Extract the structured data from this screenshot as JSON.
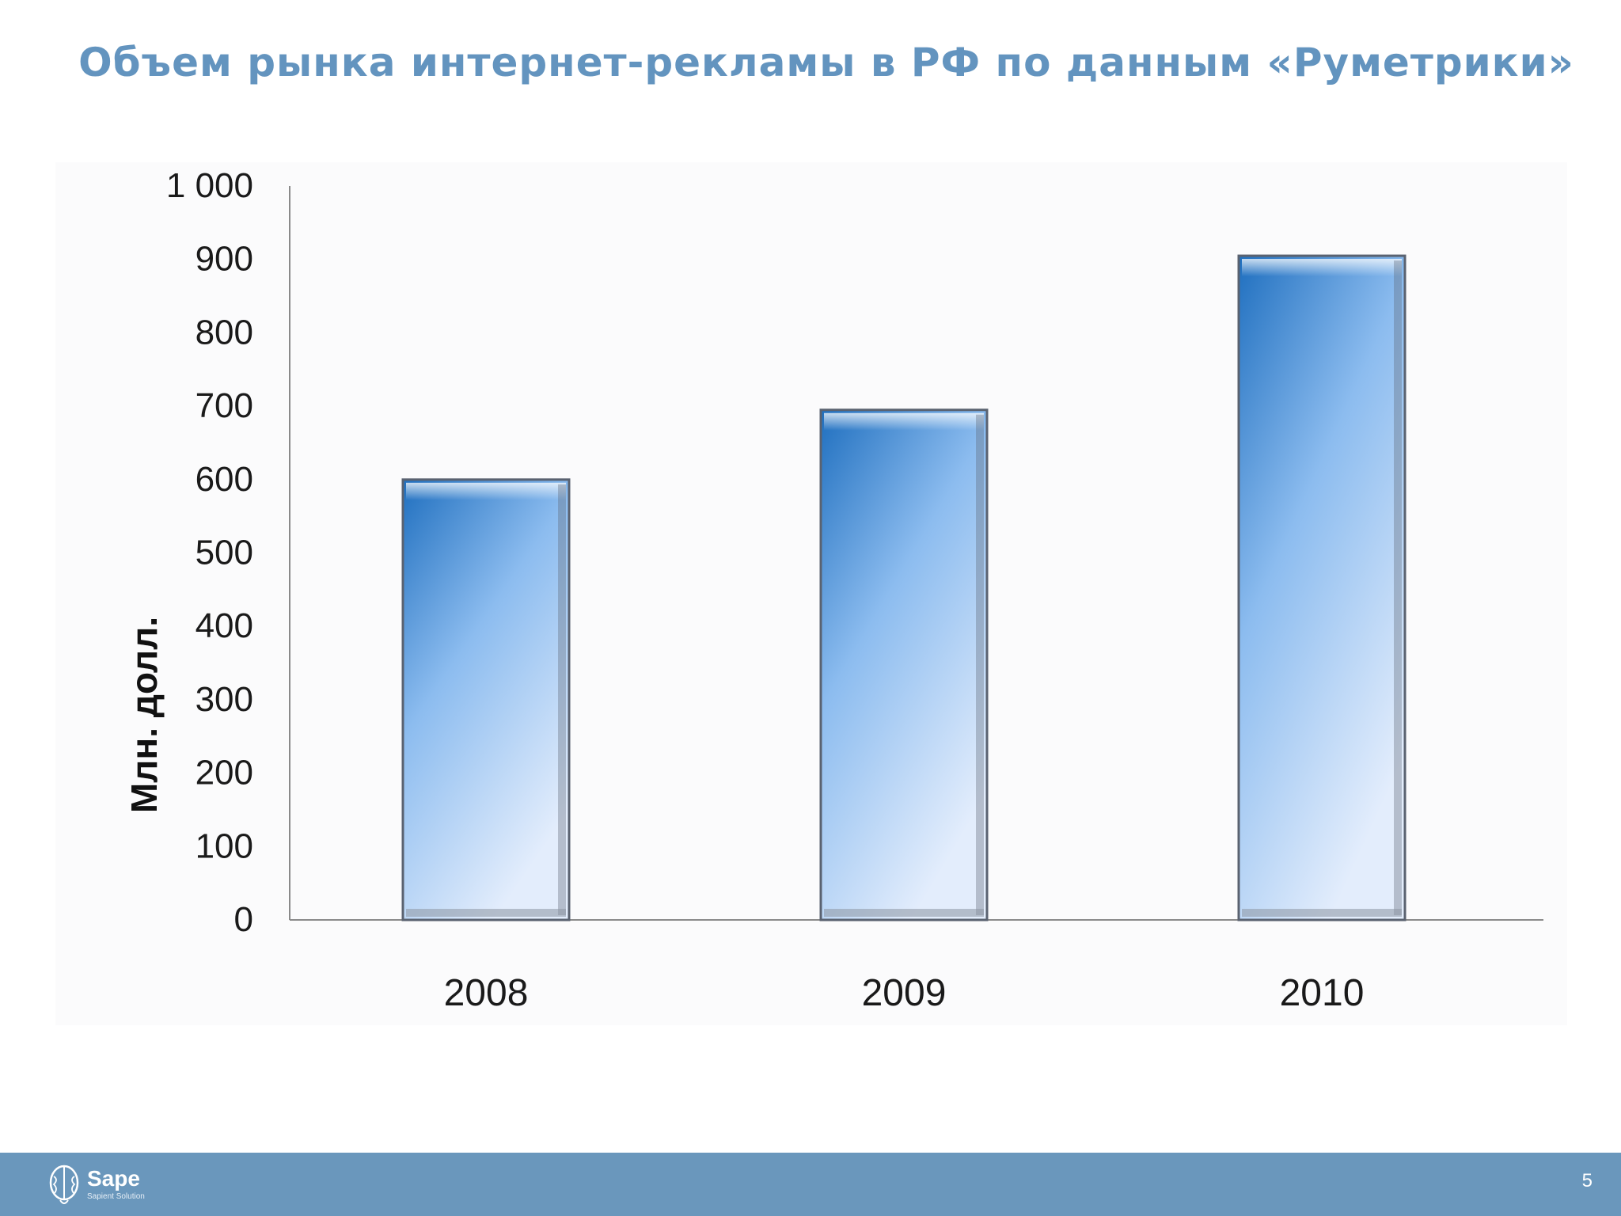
{
  "slide": {
    "title": "Объем рынка интернет-рекламы в РФ по данным «Руметрики»",
    "page_number": "5"
  },
  "footer": {
    "brand_name": "Sape",
    "brand_tagline": "Sapient Solution",
    "logo_icon": "brain-icon"
  },
  "chart_data": {
    "type": "bar",
    "categories": [
      "2008",
      "2009",
      "2010"
    ],
    "values": [
      600,
      695,
      905
    ],
    "ylabel": "Млн. долл.",
    "xlabel": "",
    "ylim": [
      0,
      1000
    ],
    "yticks": [
      0,
      100,
      200,
      300,
      400,
      500,
      600,
      700,
      800,
      900,
      1000
    ],
    "ytick_labels": [
      "0",
      "100",
      "200",
      "300",
      "400",
      "500",
      "600",
      "700",
      "800",
      "900",
      "1 000"
    ],
    "grid": false,
    "legend": "none",
    "colors": {
      "bar_top": "#1f6fbf",
      "bar_bottom": "#dce8fa",
      "bar_edge": "#5a6270",
      "axis": "#8a8a8a"
    }
  }
}
